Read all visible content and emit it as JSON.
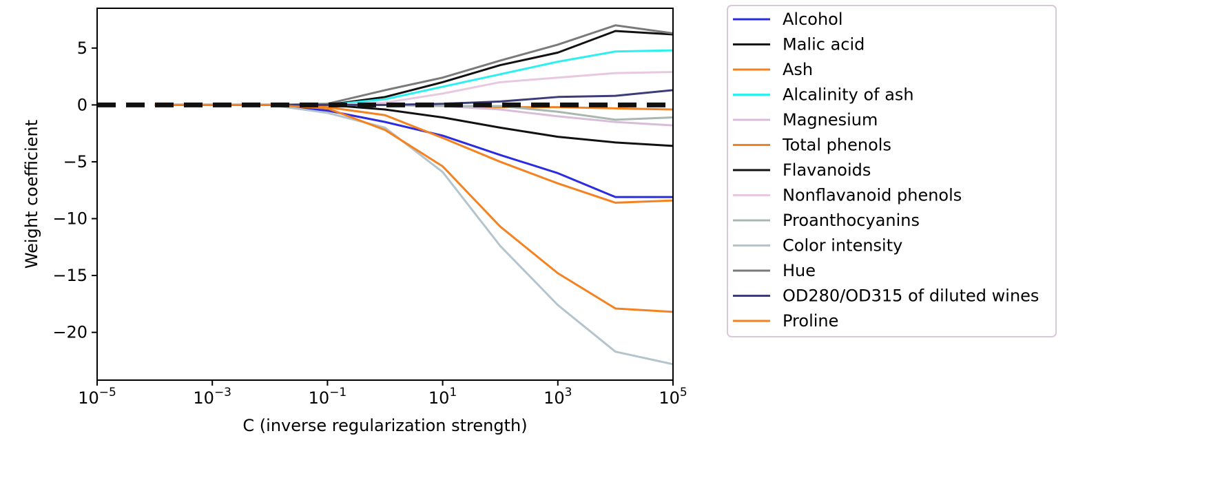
{
  "chart_data": {
    "type": "line",
    "title": "",
    "xlabel": "C (inverse regularization strength)",
    "ylabel": "Weight coefficient",
    "xscale": "log",
    "xlim": [
      1e-05,
      100000
    ],
    "ylim": [
      -24.2,
      8.5
    ],
    "x": [
      0.0001,
      0.001,
      0.01,
      0.1,
      1,
      10,
      100,
      1000,
      10000,
      100000
    ],
    "xticks": [
      {
        "base": "10",
        "exp": "−5",
        "value": 1e-05
      },
      {
        "base": "10",
        "exp": "−3",
        "value": 0.001
      },
      {
        "base": "10",
        "exp": "−1",
        "value": 0.1
      },
      {
        "base": "10",
        "exp": "1",
        "value": 10
      },
      {
        "base": "10",
        "exp": "3",
        "value": 1000
      },
      {
        "base": "10",
        "exp": "5",
        "value": 100000
      }
    ],
    "yticks": [
      {
        "label": "5",
        "value": 5
      },
      {
        "label": "0",
        "value": 0
      },
      {
        "label": "−5",
        "value": -5
      },
      {
        "label": "−10",
        "value": -10
      },
      {
        "label": "−15",
        "value": -15
      },
      {
        "label": "−20",
        "value": -20
      }
    ],
    "reference_line": {
      "y": 0,
      "style": "dashed",
      "color": "#111111"
    },
    "legend_position": "outside-right",
    "series": [
      {
        "name": "Alcohol",
        "color": "#2b2be0",
        "values": [
          0,
          0,
          0,
          -0.5,
          -1.5,
          -2.7,
          -4.4,
          -6.0,
          -8.1,
          -8.1
        ]
      },
      {
        "name": "Malic acid",
        "color": "#111111",
        "values": [
          0,
          0,
          0,
          0,
          0.7,
          2.0,
          3.5,
          4.6,
          6.5,
          6.2
        ]
      },
      {
        "name": "Ash",
        "color": "#f58220",
        "values": [
          0,
          0,
          0,
          0,
          0,
          -0.1,
          -0.2,
          -0.2,
          -0.3,
          -0.4
        ]
      },
      {
        "name": "Alcalinity of ash",
        "color": "#2cf0f0",
        "values": [
          0,
          0,
          0,
          0,
          0.5,
          1.6,
          2.7,
          3.8,
          4.7,
          4.8
        ]
      },
      {
        "name": "Magnesium",
        "color": "#d8bcd8",
        "values": [
          0,
          0,
          0,
          0,
          0,
          -0.1,
          -0.4,
          -1.0,
          -1.5,
          -1.8
        ]
      },
      {
        "name": "Total phenols",
        "color": "#f58220",
        "values": [
          0,
          0,
          0,
          -0.2,
          -0.9,
          -2.9,
          -5.0,
          -6.9,
          -8.6,
          -8.4
        ]
      },
      {
        "name": "Flavanoids",
        "color": "#111111",
        "values": [
          0,
          0,
          0,
          0,
          -0.4,
          -1.1,
          -2.0,
          -2.8,
          -3.3,
          -3.6
        ]
      },
      {
        "name": "Nonflavanoid phenols",
        "color": "#e8c8e0",
        "values": [
          0,
          0,
          0,
          0,
          0.2,
          1.0,
          2.0,
          2.4,
          2.8,
          2.9
        ]
      },
      {
        "name": "Proanthocyanins",
        "color": "#a8b8b0",
        "values": [
          0,
          0,
          0,
          0,
          0,
          -0.1,
          -0.1,
          -0.6,
          -1.3,
          -1.1
        ]
      },
      {
        "name": "Color intensity",
        "color": "#b4c4cc",
        "values": [
          0,
          0,
          0,
          -0.7,
          -2.0,
          -5.9,
          -12.4,
          -17.6,
          -21.7,
          -22.8
        ]
      },
      {
        "name": "Hue",
        "color": "#7a7a7a",
        "values": [
          0,
          0,
          0,
          0.1,
          1.3,
          2.4,
          3.9,
          5.3,
          7.0,
          6.3
        ]
      },
      {
        "name": "OD280/OD315 of diluted wines",
        "color": "#3c3c78",
        "values": [
          0,
          0,
          0,
          0,
          0,
          0.1,
          0.3,
          0.7,
          0.8,
          1.3
        ]
      },
      {
        "name": "Proline",
        "color": "#f58220",
        "values": [
          0,
          0,
          0,
          -0.3,
          -2.2,
          -5.4,
          -10.7,
          -14.8,
          -17.9,
          -18.2
        ]
      }
    ]
  }
}
